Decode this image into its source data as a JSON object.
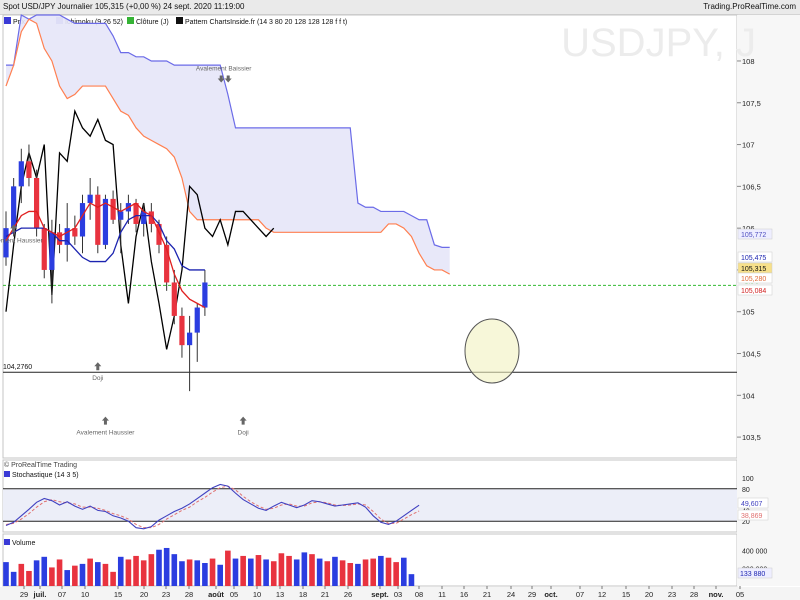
{
  "header": {
    "title": "Spot USD/JPY Journalier 105,315 (+0,00 %) 24 sept. 2020 11:19:00",
    "site": "Trading.ProRealTime.com"
  },
  "legend": [
    {
      "label": "Prix",
      "color": "#3a3ad6"
    },
    {
      "label": "Ichimoku (9 26 52)",
      "color": "#8a8ae0"
    },
    {
      "label": "Clôture (J)",
      "color": "#35b335"
    },
    {
      "label": "Pattern ChartsInside.fr (14 3 80 20 128 128 128 f f t)",
      "color": "#111111"
    }
  ],
  "watermark": "USDJPY, J",
  "footer_left": "© ProRealTime Trading",
  "colors": {
    "bull": "#2b3de0",
    "bear": "#e8333f",
    "tenkan": "#e02020",
    "kijun": "#1c24b0",
    "spanA": "#ff7f50",
    "spanB": "#6b6be8",
    "cloud": "#e6e6f8",
    "close_line": "#33bb33",
    "chikou": "#000000"
  },
  "chart_data": [
    {
      "type": "candlestick",
      "title": "Spot USD/JPY Journalier",
      "ylim": [
        103.25,
        108.55
      ],
      "yticks": [
        "108",
        "107,5",
        "107",
        "106,5",
        "106",
        "105,5",
        "105",
        "104,5",
        "104",
        "103,5"
      ],
      "xticks": [
        "29",
        "juil.",
        "07",
        "10",
        "15",
        "20",
        "23",
        "28",
        "août",
        "05",
        "10",
        "13",
        "18",
        "21",
        "26",
        "sept.",
        "03",
        "08",
        "11",
        "16",
        "21",
        "24",
        "29",
        "oct.",
        "07",
        "12",
        "15",
        "20",
        "23",
        "28",
        "nov.",
        "05"
      ],
      "price_labels": [
        "105,772",
        "105,475",
        "105,315",
        "105,280",
        "105,084"
      ],
      "close_marker_label": "Clô J",
      "support_level": "104,2760",
      "support_value": 104.276,
      "close": 105.315,
      "candles": [
        [
          106.35,
          106.9,
          106.25,
          106.6
        ],
        [
          106.6,
          107.05,
          106.4,
          106.9
        ],
        [
          106.9,
          107.6,
          106.8,
          107.45
        ],
        [
          107.45,
          107.8,
          107.3,
          107.7
        ],
        [
          107.7,
          108.2,
          107.4,
          107.55
        ],
        [
          107.55,
          107.7,
          107.1,
          107.3
        ],
        [
          107.3,
          107.5,
          107.1,
          107.4
        ],
        [
          107.4,
          107.6,
          107.15,
          107.25
        ],
        [
          107.25,
          107.35,
          106.75,
          106.9
        ],
        [
          106.9,
          107.35,
          106.8,
          107.25
        ],
        [
          107.25,
          107.4,
          107.1,
          107.2
        ],
        [
          107.2,
          107.3,
          106.75,
          106.9
        ],
        [
          106.9,
          107.3,
          106.85,
          107.2
        ],
        [
          107.2,
          107.3,
          106.9,
          107.05
        ],
        [
          107.05,
          107.25,
          106.7,
          106.8
        ],
        [
          106.8,
          107.15,
          106.7,
          107.0
        ],
        [
          107.0,
          107.1,
          106.5,
          106.55
        ],
        [
          106.55,
          106.6,
          105.9,
          106.1
        ],
        [
          106.1,
          106.2,
          105.4,
          105.5
        ],
        [
          105.5,
          106.0,
          105.1,
          105.3
        ],
        [
          105.3,
          105.5,
          104.9,
          105.05
        ],
        [
          105.05,
          105.2,
          104.6,
          104.75
        ],
        [
          104.75,
          106.2,
          104.2,
          105.9
        ],
        [
          105.9,
          106.4,
          105.7,
          105.95
        ],
        [
          105.95,
          106.3,
          105.6,
          105.8
        ],
        [
          105.8,
          106.1,
          105.5,
          105.65
        ],
        [
          105.65,
          106.2,
          105.55,
          106.0
        ],
        [
          106.0,
          106.6,
          105.9,
          106.5
        ],
        [
          106.5,
          106.95,
          106.3,
          106.8
        ],
        [
          106.8,
          107.0,
          106.5,
          106.6
        ],
        [
          106.6,
          106.7,
          105.9,
          106.0
        ],
        [
          106.0,
          106.05,
          105.4,
          105.5
        ],
        [
          105.5,
          106.1,
          105.1,
          105.95
        ],
        [
          105.95,
          106.05,
          105.7,
          105.8
        ],
        [
          105.8,
          106.3,
          105.6,
          106.0
        ],
        [
          106.0,
          106.15,
          105.8,
          105.9
        ],
        [
          105.9,
          106.4,
          105.7,
          106.3
        ],
        [
          106.3,
          106.6,
          106.1,
          106.4
        ],
        [
          106.4,
          106.5,
          105.7,
          105.8
        ],
        [
          105.8,
          106.4,
          105.75,
          106.35
        ],
        [
          106.35,
          106.45,
          106.05,
          106.1
        ],
        [
          106.1,
          106.3,
          105.7,
          106.2
        ],
        [
          106.2,
          106.4,
          106.05,
          106.3
        ],
        [
          106.3,
          106.35,
          105.95,
          106.05
        ],
        [
          106.05,
          106.3,
          105.9,
          106.2
        ],
        [
          106.2,
          106.3,
          105.95,
          106.05
        ],
        [
          106.05,
          106.1,
          105.7,
          105.8
        ],
        [
          105.8,
          105.9,
          105.25,
          105.35
        ],
        [
          105.35,
          105.5,
          104.85,
          104.95
        ],
        [
          104.95,
          105.05,
          104.45,
          104.6
        ],
        [
          104.6,
          104.95,
          104.05,
          104.75
        ],
        [
          104.75,
          105.1,
          104.4,
          105.05
        ],
        [
          105.05,
          105.5,
          104.95,
          105.35
        ]
      ],
      "tenkan": [
        106.95,
        107.1,
        107.2,
        107.25,
        107.35,
        107.25,
        107.2,
        107.2,
        107.15,
        107.15,
        107.2,
        107.15,
        106.95,
        106.9,
        106.75,
        106.55,
        106.3,
        106.15,
        105.95,
        105.75,
        105.65,
        105.45,
        105.5,
        105.55,
        105.6,
        105.7,
        105.85,
        106.0,
        106.15,
        106.2,
        106.2,
        106.0,
        105.95,
        105.9,
        105.95,
        106.0,
        106.15,
        106.3,
        106.25,
        106.3,
        106.25,
        106.2,
        106.25,
        106.3,
        106.2,
        106.15,
        105.95,
        105.75,
        105.45,
        105.25,
        105.15,
        105.1,
        105.05
      ],
      "kijun": [
        107.9,
        107.9,
        107.9,
        107.9,
        107.85,
        107.8,
        107.6,
        107.5,
        107.35,
        107.3,
        107.25,
        107.2,
        107.15,
        107.05,
        106.85,
        106.7,
        106.5,
        106.35,
        106.25,
        106.15,
        106.0,
        105.95,
        105.95,
        105.95,
        105.9,
        105.9,
        105.9,
        105.95,
        106.0,
        106.0,
        106.0,
        106.0,
        105.95,
        105.85,
        105.85,
        105.75,
        105.65,
        105.6,
        105.6,
        105.6,
        105.7,
        105.95,
        106.1,
        106.15,
        106.15,
        106.15,
        106.05,
        105.85,
        105.75,
        105.55,
        105.5,
        105.5,
        105.5
      ],
      "chikou": [
        105.0,
        105.8,
        106.5,
        106.9,
        106.6,
        107.0,
        105.2,
        106.9,
        106.8,
        107.4,
        107.2,
        107.1,
        107.3,
        107.05,
        107.0,
        105.8,
        105.1,
        105.9,
        106.3,
        105.6,
        105.1,
        104.55,
        104.95,
        105.5,
        106.5,
        106.4,
        106.0,
        105.9,
        106.1,
        105.8,
        106.2,
        106.2,
        106.1,
        106.0,
        105.9,
        106.0
      ],
      "span_a": [
        107.7,
        107.95,
        108.35,
        108.5,
        108.45,
        108.15,
        108.0,
        107.7,
        107.55,
        107.6,
        107.7,
        107.7,
        107.7,
        107.7,
        107.55,
        107.4,
        107.35,
        107.2,
        107.1,
        107.05,
        107.0,
        106.95,
        106.85,
        106.6,
        106.2,
        106.1,
        106.1,
        106.1,
        106.1,
        106.1,
        106.1,
        106.1,
        106.1,
        106.1,
        106.0,
        105.95,
        105.95,
        105.95,
        105.95,
        105.95,
        105.95,
        105.95,
        105.95,
        105.95,
        105.95,
        105.95,
        105.95,
        105.95,
        105.95,
        105.95,
        106.05,
        106.05,
        106.0,
        105.9,
        105.7,
        105.55,
        105.5,
        105.5,
        105.45
      ],
      "span_b": [
        107.95,
        107.95,
        108.55,
        108.5,
        108.55,
        108.55,
        108.55,
        108.55,
        108.5,
        108.45,
        108.45,
        108.45,
        108.45,
        108.45,
        108.3,
        108.1,
        108.1,
        108.05,
        108.05,
        108.0,
        108.0,
        108.0,
        107.95,
        107.95,
        107.95,
        107.95,
        107.95,
        107.95,
        107.95,
        107.6,
        107.2,
        107.2,
        107.2,
        107.2,
        107.2,
        107.2,
        107.2,
        107.2,
        107.2,
        107.2,
        107.2,
        107.2,
        107.2,
        107.2,
        107.2,
        107.2,
        106.3,
        106.25,
        106.25,
        106.2,
        106.2,
        106.2,
        106.2,
        106.15,
        106.1,
        106.1,
        105.8,
        105.77,
        105.77
      ],
      "annotations": [
        {
          "text": "Avalement Baissier",
          "dir": "down",
          "bar": 18,
          "value": 107.85
        },
        {
          "text": "Avalement Haussier",
          "dir": "up",
          "bar": 1,
          "value": 105.95
        },
        {
          "text": "Doji",
          "dir": "up",
          "bar": 12,
          "value": 104.3
        },
        {
          "text": "Avalement Haussier",
          "dir": "up",
          "bar": 13,
          "value": 103.65
        },
        {
          "text": "Doji",
          "dir": "up",
          "bar": 31,
          "value": 103.65
        }
      ]
    },
    {
      "type": "line",
      "title": "Stochastique (14 3 5)",
      "ylim": [
        0,
        100
      ],
      "yticks": [
        "100",
        "80",
        "40",
        "20"
      ],
      "levels": [
        80,
        20
      ],
      "value_labels": [
        "49,607",
        "38,869"
      ],
      "series": [
        {
          "name": "",
          "values": [
            12,
            18,
            30,
            42,
            55,
            62,
            58,
            50,
            56,
            48,
            42,
            48,
            40,
            38,
            30,
            26,
            20,
            8,
            6,
            10,
            22,
            30,
            38,
            44,
            52,
            62,
            72,
            82,
            88,
            85,
            72,
            60,
            52,
            44,
            40,
            48,
            55,
            50,
            45,
            50,
            58,
            56,
            52,
            48,
            50,
            52,
            54,
            46,
            30,
            18,
            14,
            20,
            30,
            40,
            49.6
          ]
        },
        {
          "name": "",
          "values": [
            14,
            16,
            24,
            34,
            46,
            56,
            60,
            56,
            54,
            52,
            46,
            46,
            44,
            40,
            34,
            30,
            24,
            14,
            8,
            8,
            14,
            24,
            32,
            40,
            46,
            56,
            64,
            74,
            82,
            85,
            78,
            66,
            56,
            48,
            42,
            44,
            50,
            52,
            48,
            48,
            54,
            56,
            54,
            50,
            49,
            50,
            52,
            50,
            38,
            24,
            16,
            16,
            24,
            32,
            38.9
          ]
        }
      ]
    },
    {
      "type": "bar",
      "title": "Volume",
      "yticks": [
        "400 000",
        "200 000"
      ],
      "value_label": "133 880",
      "ylim": [
        0,
        520000
      ],
      "values": [
        270000,
        160000,
        250000,
        170000,
        290000,
        330000,
        210000,
        300000,
        180000,
        230000,
        250000,
        310000,
        270000,
        250000,
        160000,
        330000,
        300000,
        340000,
        290000,
        360000,
        410000,
        430000,
        360000,
        280000,
        300000,
        290000,
        260000,
        310000,
        240000,
        400000,
        310000,
        340000,
        310000,
        350000,
        300000,
        280000,
        370000,
        340000,
        300000,
        380000,
        360000,
        310000,
        280000,
        330000,
        290000,
        260000,
        250000,
        300000,
        310000,
        340000,
        320000,
        270000,
        320000,
        133880
      ],
      "colors": [
        "b",
        "b",
        "r",
        "r",
        "b",
        "b",
        "r",
        "r",
        "b",
        "r",
        "b",
        "r",
        "b",
        "r",
        "r",
        "b",
        "r",
        "r",
        "r",
        "r",
        "b",
        "b",
        "b",
        "b",
        "r",
        "b",
        "b",
        "r",
        "b",
        "r",
        "b",
        "r",
        "b",
        "r",
        "b",
        "r",
        "r",
        "r",
        "b",
        "b",
        "r",
        "b",
        "r",
        "b",
        "r",
        "r",
        "b",
        "r",
        "r",
        "b",
        "r",
        "r",
        "b",
        "b"
      ]
    }
  ]
}
